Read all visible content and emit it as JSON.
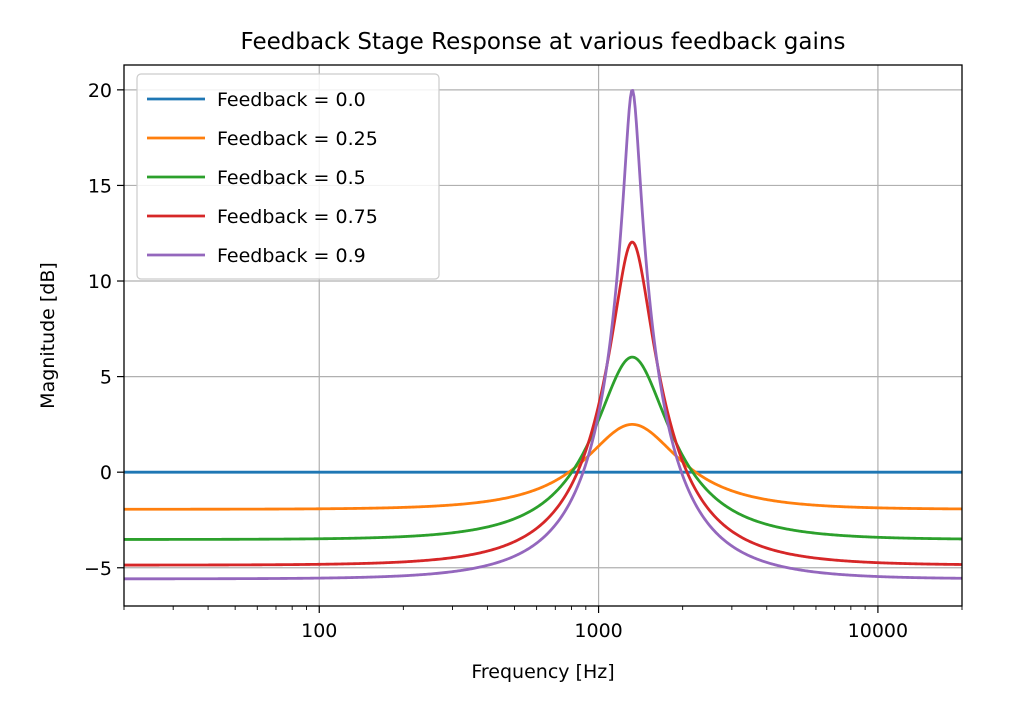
{
  "chart_data": {
    "type": "line",
    "title": "Feedback Stage Response at various feedback gains",
    "xlabel": "Frequency [Hz]",
    "ylabel": "Magnitude [dB]",
    "xscale": "log",
    "xlim": [
      20,
      20000
    ],
    "ylim": [
      -7,
      21.3
    ],
    "grid": true,
    "legend_position": "top-left",
    "center_frequency": 1320,
    "xticks": [
      {
        "value": 100,
        "label": "100"
      },
      {
        "value": 1000,
        "label": "1000"
      },
      {
        "value": 10000,
        "label": "10000"
      }
    ],
    "yticks": [
      {
        "value": -5,
        "label": "−5"
      },
      {
        "value": 0,
        "label": "0"
      },
      {
        "value": 5,
        "label": "5"
      },
      {
        "value": 10,
        "label": "10"
      },
      {
        "value": 15,
        "label": "15"
      },
      {
        "value": 20,
        "label": "20"
      }
    ],
    "series": [
      {
        "name": "Feedback = 0.0",
        "feedback": 0.0,
        "color": "#1f77b4",
        "low_db": 0.0,
        "peak_db": 0.0
      },
      {
        "name": "Feedback = 0.25",
        "feedback": 0.25,
        "color": "#ff7f0e",
        "low_db": -1.94,
        "peak_db": 2.5
      },
      {
        "name": "Feedback = 0.5",
        "feedback": 0.5,
        "color": "#2ca02c",
        "low_db": -3.52,
        "peak_db": 6.02
      },
      {
        "name": "Feedback = 0.75",
        "feedback": 0.75,
        "color": "#d62728",
        "low_db": -4.86,
        "peak_db": 12.04
      },
      {
        "name": "Feedback = 0.9",
        "feedback": 0.9,
        "color": "#9467bd",
        "low_db": -5.58,
        "peak_db": 20.0
      }
    ]
  }
}
